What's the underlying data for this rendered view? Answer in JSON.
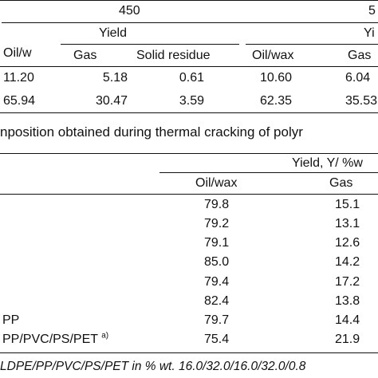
{
  "table1": {
    "temp_a": "450",
    "temp_b": "5",
    "yield_a": "Yield",
    "yield_b": "Yi",
    "col_oil_w": "Oil/w",
    "col_gas_a": "Gas",
    "col_solid": "Solid residue",
    "col_oilwax": "Oil/wax",
    "col_gas_b": "Gas",
    "rows": [
      {
        "c1": "11.20",
        "c2": "5.18",
        "c3": "0.61",
        "c4": "10.60",
        "c5": "6.04"
      },
      {
        "c1": "65.94",
        "c2": "30.47",
        "c3": "3.59",
        "c4": "62.35",
        "c5": "35.53"
      }
    ]
  },
  "caption": "nposition obtained during thermal cracking of polyr",
  "table2": {
    "yield_header": "Yield, Y/ %w",
    "col_oilwax": "Oil/wax",
    "col_gas": "Gas",
    "rows": [
      {
        "label": "",
        "oil": "79.8",
        "gas": "15.1"
      },
      {
        "label": "",
        "oil": "79.2",
        "gas": "13.1"
      },
      {
        "label": "",
        "oil": "79.1",
        "gas": "12.6"
      },
      {
        "label": "",
        "oil": "85.0",
        "gas": "14.2"
      },
      {
        "label": "",
        "oil": "79.4",
        "gas": "17.2"
      },
      {
        "label": "",
        "oil": "82.4",
        "gas": "13.8"
      },
      {
        "label": "PP",
        "oil": "79.7",
        "gas": "14.4"
      },
      {
        "label": "PP/PVC/PS/PET",
        "sup": "a)",
        "oil": "75.4",
        "gas": "21.9"
      }
    ],
    "footnote": "LDPE/PP/PVC/PS/PET in % wt. 16.0/32.0/16.0/32.0/0.8"
  }
}
